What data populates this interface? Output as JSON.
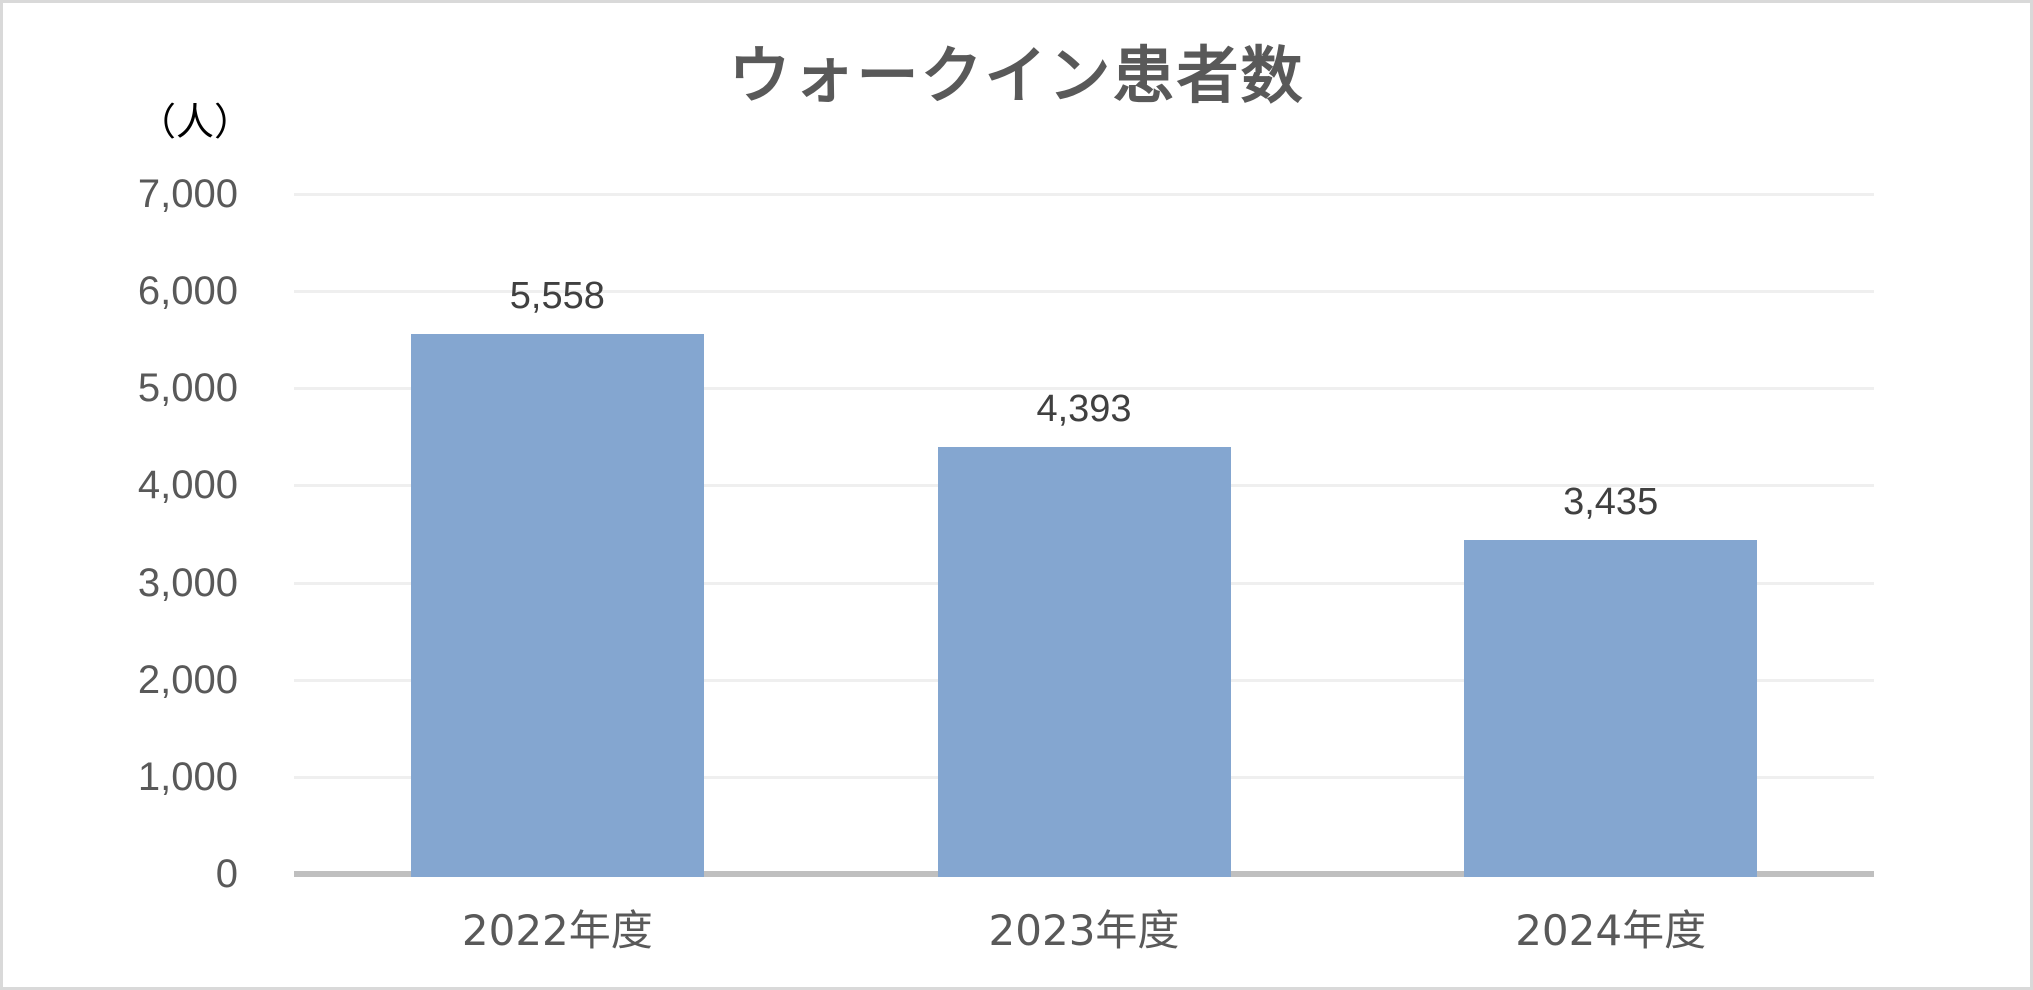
{
  "chart_data": {
    "type": "bar",
    "title": "ウォークイン患者数",
    "unit_label": "（人）",
    "xlabel": "",
    "ylabel": "（人）",
    "categories": [
      "2022年度",
      "2023年度",
      "2024年度"
    ],
    "values": [
      5558,
      4393,
      3435
    ],
    "data_labels": [
      "5,558",
      "4,393",
      "3,435"
    ],
    "ylim": [
      0,
      7000
    ],
    "yticks": [
      0,
      1000,
      2000,
      3000,
      4000,
      5000,
      6000,
      7000
    ],
    "ytick_labels": [
      "0",
      "1,000",
      "2,000",
      "3,000",
      "4,000",
      "5,000",
      "6,000",
      "7,000"
    ],
    "grid": true,
    "legend": null,
    "bar_color": "#84a6d0"
  },
  "colors": {
    "bar": "#84a6d0",
    "gridline": "#efefef",
    "axis": "#bfbfbf",
    "text": "#595959",
    "data_label": "#404040"
  }
}
